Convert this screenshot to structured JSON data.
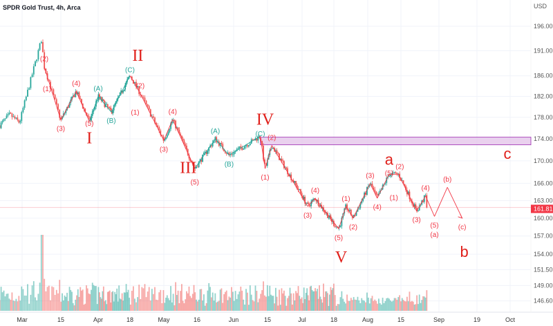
{
  "header": {
    "title": "SPDR Gold Trust, 4h, Arca"
  },
  "chart_data": {
    "type": "candlestick",
    "title": "SPDR Gold Trust, 4h, Arca",
    "y_unit": "USD",
    "y_scale": "log",
    "ylim": [
      144.5,
      200
    ],
    "grid": true,
    "y_ticks": [
      "196.00",
      "191.00",
      "186.00",
      "182.00",
      "178.00",
      "174.00",
      "170.00",
      "166.00",
      "163.00",
      "160.00",
      "157.00",
      "154.00",
      "151.50",
      "149.00",
      "146.60"
    ],
    "x_ticks": [
      {
        "label": "Mar",
        "date": "03-01"
      },
      {
        "label": "15",
        "date": "03-15"
      },
      {
        "label": "Apr",
        "date": "04-01"
      },
      {
        "label": "18",
        "date": "04-18"
      },
      {
        "label": "May",
        "date": "05-01"
      },
      {
        "label": "16",
        "date": "05-16"
      },
      {
        "label": "Jun",
        "date": "06-01"
      },
      {
        "label": "15",
        "date": "06-15"
      },
      {
        "label": "Jul",
        "date": "07-01"
      },
      {
        "label": "18",
        "date": "07-18"
      },
      {
        "label": "Aug",
        "date": "08-01"
      },
      {
        "label": "15",
        "date": "08-15"
      },
      {
        "label": "Sep",
        "date": "09-01"
      },
      {
        "label": "19",
        "date": "09-19"
      },
      {
        "label": "Oct",
        "date": "10-01"
      }
    ],
    "last_price": {
      "value": "161.81",
      "color": "#f23645"
    },
    "price_path": [
      {
        "date": "02-20",
        "price": 176.5
      },
      {
        "date": "02-24",
        "price": 178.5
      },
      {
        "date": "02-28",
        "price": 177
      },
      {
        "date": "03-08",
        "price": 193.3
      },
      {
        "date": "03-09",
        "price": 187.8
      },
      {
        "date": "03-15",
        "price": 177.5
      },
      {
        "date": "03-22",
        "price": 183
      },
      {
        "date": "03-28",
        "price": 177.2
      },
      {
        "date": "04-01",
        "price": 182
      },
      {
        "date": "04-08",
        "price": 179
      },
      {
        "date": "04-18",
        "price": 186
      },
      {
        "date": "04-22",
        "price": 182.5
      },
      {
        "date": "05-01",
        "price": 173.7
      },
      {
        "date": "05-05",
        "price": 177.6
      },
      {
        "date": "05-15",
        "price": 168.6
      },
      {
        "date": "05-24",
        "price": 174
      },
      {
        "date": "05-30",
        "price": 171
      },
      {
        "date": "06-12",
        "price": 174.5
      },
      {
        "date": "06-14",
        "price": 168.6
      },
      {
        "date": "06-17",
        "price": 172.8
      },
      {
        "date": "07-04",
        "price": 162
      },
      {
        "date": "07-08",
        "price": 163.4
      },
      {
        "date": "07-20",
        "price": 158.2
      },
      {
        "date": "07-23",
        "price": 162
      },
      {
        "date": "07-26",
        "price": 160
      },
      {
        "date": "08-02",
        "price": 166
      },
      {
        "date": "08-05",
        "price": 163.4
      },
      {
        "date": "08-10",
        "price": 167.6
      },
      {
        "date": "08-14",
        "price": 167.6
      },
      {
        "date": "08-22",
        "price": 161.2
      },
      {
        "date": "08-26",
        "price": 163.8
      },
      {
        "date": "08-27",
        "price": 161.81
      }
    ],
    "resistance_zone": {
      "low": 172.9,
      "high": 174.3,
      "from": "06-12",
      "color": "#e1bee7"
    },
    "wave_pivots": [
      {
        "date": "03-09",
        "price": 187.8,
        "label": "(2)",
        "pos": "above",
        "color": "#f23645"
      },
      {
        "date": "03-15",
        "price": 177.5,
        "label": "(3)",
        "pos": "below",
        "color": "#f23645"
      },
      {
        "date": "03-22",
        "price": 183,
        "label": "(4)",
        "pos": "above",
        "color": "#f23645"
      },
      {
        "date": "03-28",
        "price": 177.2,
        "label": "(5)",
        "pos": "below",
        "color": "#f23645"
      },
      {
        "date": "04-01",
        "price": 182,
        "label": "(A)",
        "pos": "above",
        "color": "#26a69a"
      },
      {
        "date": "04-08",
        "price": 179,
        "label": "(B)",
        "pos": "below",
        "color": "#26a69a"
      },
      {
        "date": "04-18",
        "price": 186,
        "label": "(C)",
        "pos": "above",
        "color": "#26a69a"
      },
      {
        "date": "04-22",
        "price": 182.5,
        "label": "(2)",
        "pos": "above",
        "color": "#f23645"
      },
      {
        "date": "05-01",
        "price": 173.7,
        "label": "(3)",
        "pos": "below",
        "color": "#f23645"
      },
      {
        "date": "05-05",
        "price": 177.6,
        "label": "(4)",
        "pos": "above",
        "color": "#f23645"
      },
      {
        "date": "05-15",
        "price": 168.6,
        "label": "(5)",
        "pos": "below",
        "color": "#f23645"
      },
      {
        "date": "05-24",
        "price": 174,
        "label": "(A)",
        "pos": "above",
        "color": "#26a69a"
      },
      {
        "date": "05-30",
        "price": 171,
        "label": "(B)",
        "pos": "below",
        "color": "#26a69a"
      },
      {
        "date": "06-12",
        "price": 174.5,
        "label": "(C)",
        "pos": "above",
        "color": "#26a69a"
      },
      {
        "date": "06-14",
        "price": 168.6,
        "label": "(1)",
        "pos": "below",
        "color": "#f23645"
      },
      {
        "date": "06-17",
        "price": 172.8,
        "label": "(2)",
        "pos": "above",
        "color": "#f23645"
      },
      {
        "date": "07-04",
        "price": 162,
        "label": "(3)",
        "pos": "below",
        "color": "#f23645"
      },
      {
        "date": "07-08",
        "price": 163.4,
        "label": "(4)",
        "pos": "above",
        "color": "#f23645"
      },
      {
        "date": "07-20",
        "price": 158.2,
        "label": "(5)",
        "pos": "below",
        "color": "#f23645"
      },
      {
        "date": "07-23",
        "price": 162,
        "label": "(1)",
        "pos": "above",
        "color": "#f23645"
      },
      {
        "date": "07-26",
        "price": 160,
        "label": "(2)",
        "pos": "below",
        "color": "#f23645"
      },
      {
        "date": "08-02",
        "price": 166,
        "label": "(3)",
        "pos": "above",
        "color": "#f23645"
      },
      {
        "date": "08-05",
        "price": 163.4,
        "label": "(4)",
        "pos": "below",
        "color": "#f23645"
      },
      {
        "date": "08-10",
        "price": 167.6,
        "label": "(5)",
        "pos": "above",
        "color": "#f23645"
      },
      {
        "date": "08-14",
        "price": 167.6,
        "label": "(2)",
        "pos": "above",
        "color": "#f23645"
      },
      {
        "date": "08-22",
        "price": 161.2,
        "label": "(3)",
        "pos": "below",
        "color": "#f23645"
      },
      {
        "date": "08-26",
        "price": 163.8,
        "label": "(4)",
        "pos": "above",
        "color": "#f23645"
      },
      {
        "date": "08-30",
        "price": 160.3,
        "label": "(5)",
        "pos": "below",
        "color": "#f23645"
      },
      {
        "date": "09-05",
        "price": 165.3,
        "label": "(b)",
        "pos": "above",
        "color": "#f23645"
      },
      {
        "date": "09-12",
        "price": 160,
        "label": "(c)",
        "pos": "below",
        "color": "#f23645"
      }
    ],
    "extra_labels": [
      {
        "date": "03-10",
        "price": 183.5,
        "label": "(1)",
        "color": "#f23645"
      },
      {
        "date": "04-20",
        "price": 179,
        "label": "(1)",
        "color": "#f23645"
      },
      {
        "date": "08-12",
        "price": 163.6,
        "label": "(1)",
        "color": "#f23645"
      },
      {
        "date": "08-30",
        "price": 157.3,
        "label": "(a)",
        "color": "#f23645"
      }
    ],
    "major_labels": [
      {
        "date": "03-28",
        "price": 174.3,
        "label": "I"
      },
      {
        "date": "04-21",
        "price": 190.2,
        "label": "II"
      },
      {
        "date": "05-12",
        "price": 168.9,
        "label": "III"
      },
      {
        "date": "06-14",
        "price": 177.8,
        "label": "IV"
      },
      {
        "date": "07-21",
        "price": 153.7,
        "label": "V"
      },
      {
        "date": "08-10",
        "price": 170.4,
        "label": "a"
      },
      {
        "date": "09-13",
        "price": 154.6,
        "label": "b"
      },
      {
        "date": "09-30",
        "price": 171.5,
        "label": "c"
      }
    ],
    "colors": {
      "up": "#26a69a",
      "down": "#ef5350",
      "wave": "#f23645",
      "correction": "#26a69a",
      "major": "#e0201b"
    }
  }
}
